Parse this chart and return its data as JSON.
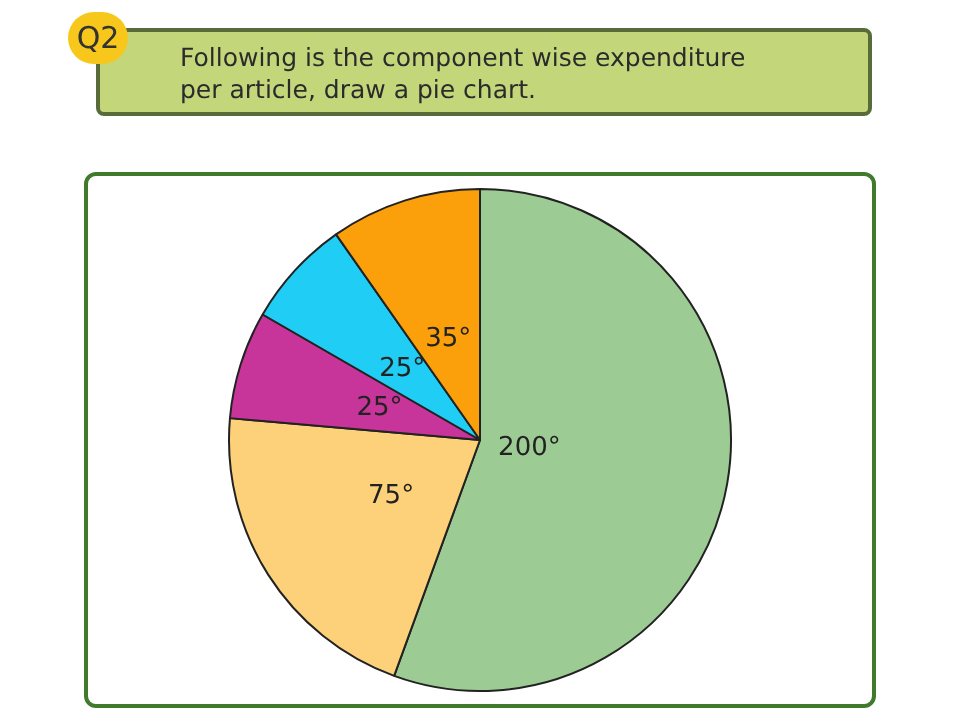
{
  "chart_data": {
    "type": "pie",
    "title": "Following is the component wise expenditure per article, draw a pie chart.",
    "annotations": [
      "Q2"
    ],
    "categories": [
      null,
      null,
      null,
      null,
      null
    ],
    "values": [
      200,
      75,
      25,
      25,
      35
    ],
    "colors": [
      "#9ccc94",
      "#fdd07a",
      "#c8359a",
      "#1fcdf5",
      "#fb9f0a"
    ],
    "value_labels": [
      "200°",
      "75°",
      "25°",
      "25°",
      "35°"
    ],
    "legend": false
  }
}
